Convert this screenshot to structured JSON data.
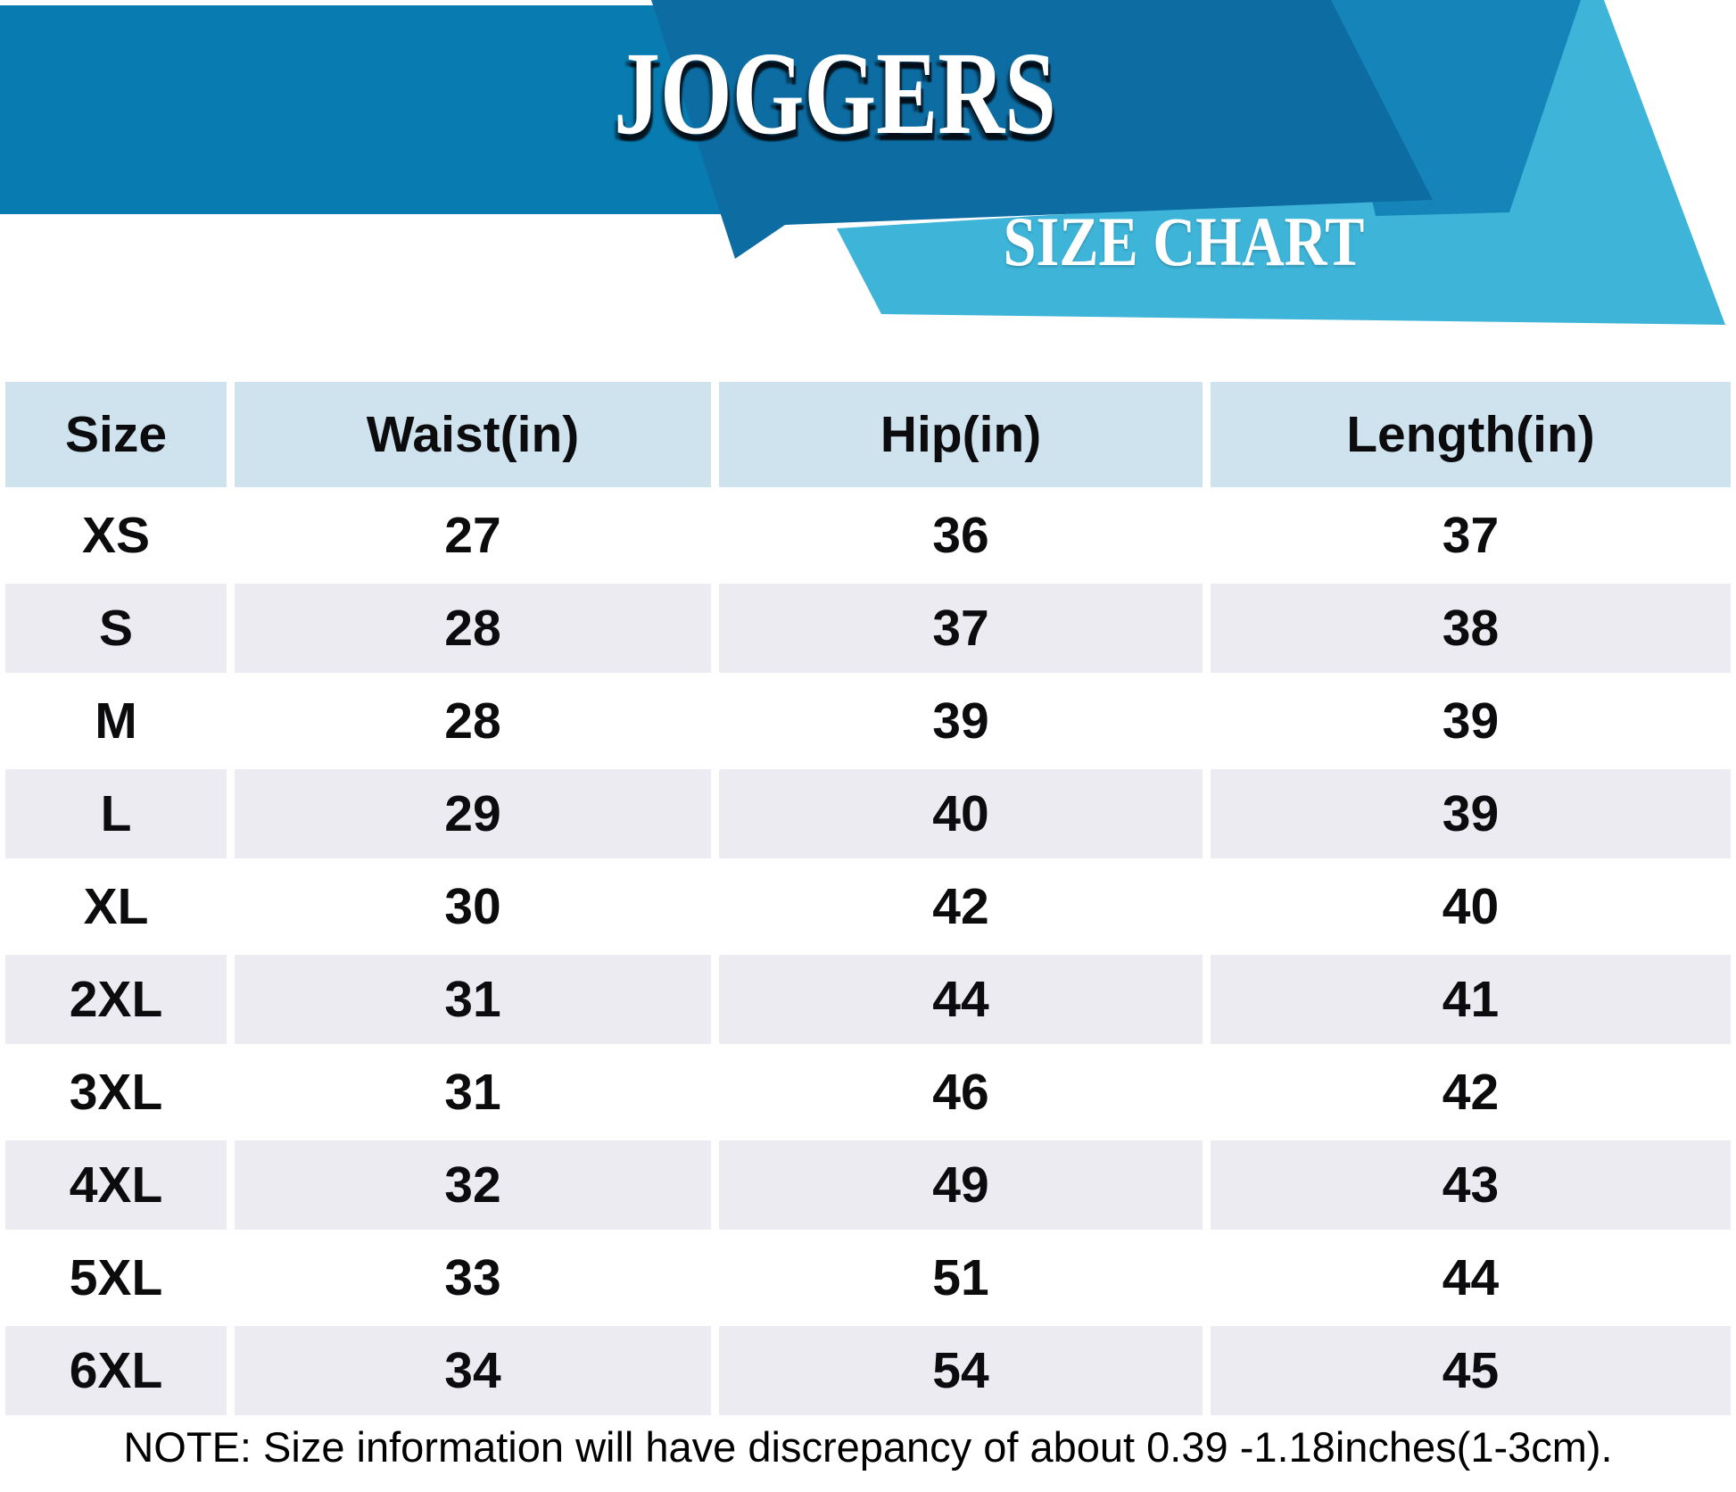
{
  "header": {
    "title": "JOGGERS",
    "subtitle": "SIZE CHART",
    "colors": {
      "band_left_blue": "#087cb0",
      "banner_dark_blue": "#0d6da3",
      "banner_mid_blue": "#1585b9",
      "banner_cyan": "#3db4d8"
    }
  },
  "table_style": {
    "header_bg": "#cfe3ef",
    "alt_row_bg": "#ebebf1",
    "plain_row_bg": "#ffffff"
  },
  "chart_data": {
    "type": "table",
    "title": "JOGGERS",
    "subtitle": "SIZE CHART",
    "columns": [
      "Size",
      "Waist(in)",
      "Hip(in)",
      "Length(in)"
    ],
    "rows": [
      [
        "XS",
        "27",
        "36",
        "37"
      ],
      [
        "S",
        "28",
        "37",
        "38"
      ],
      [
        "M",
        "28",
        "39",
        "39"
      ],
      [
        "L",
        "29",
        "40",
        "39"
      ],
      [
        "XL",
        "30",
        "42",
        "40"
      ],
      [
        "2XL",
        "31",
        "44",
        "41"
      ],
      [
        "3XL",
        "31",
        "46",
        "42"
      ],
      [
        "4XL",
        "32",
        "49",
        "43"
      ],
      [
        "5XL",
        "33",
        "51",
        "44"
      ],
      [
        "6XL",
        "34",
        "54",
        "45"
      ]
    ],
    "note": "NOTE: Size information will have discrepancy of about 0.39 -1.18inches(1-3cm)."
  }
}
